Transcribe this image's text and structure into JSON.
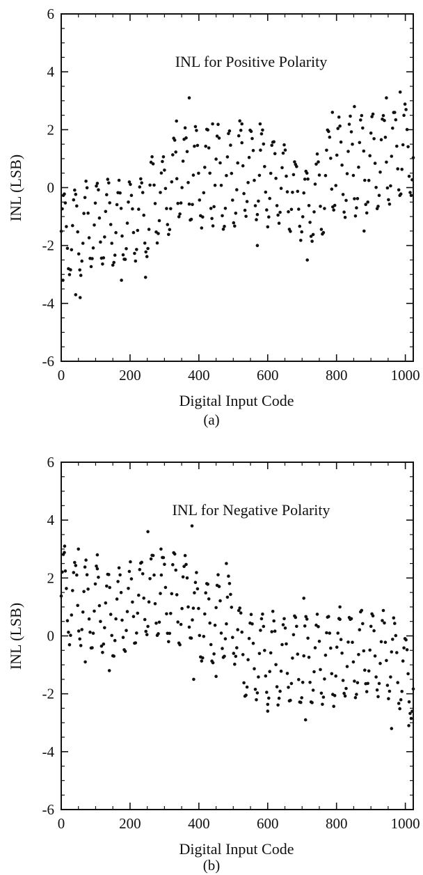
{
  "chart_data": [
    {
      "type": "scatter",
      "title": "INL for Positive Polarity",
      "xlabel": "Digital Input Code",
      "ylabel": "INL (LSB)",
      "caption": "(a)",
      "xlim": [
        0,
        1023
      ],
      "ylim": [
        -6,
        6
      ],
      "xticks": [
        "0",
        "200",
        "400",
        "600",
        "800",
        "1000"
      ],
      "yticks": [
        "-6",
        "-4",
        "-2",
        "0",
        "2",
        "4",
        "6"
      ],
      "grid": false,
      "marker_color": "#111111",
      "series": [
        {
          "trend_points": [
            [
              0,
              -1.6
            ],
            [
              60,
              -1.5
            ],
            [
              100,
              -1.2
            ],
            [
              150,
              -1.3
            ],
            [
              200,
              -1.2
            ],
            [
              255,
              -1.0
            ],
            [
              260,
              -0.4
            ],
            [
              320,
              -0.2
            ],
            [
              330,
              0.4
            ],
            [
              380,
              0.5
            ],
            [
              400,
              0.3
            ],
            [
              450,
              0.4
            ],
            [
              500,
              0.2
            ],
            [
              520,
              0.6
            ],
            [
              580,
              0.5
            ],
            [
              600,
              0.3
            ],
            [
              640,
              0.2
            ],
            [
              690,
              -0.4
            ],
            [
              720,
              -0.6
            ],
            [
              760,
              -0.2
            ],
            [
              770,
              0.4
            ],
            [
              800,
              0.8
            ],
            [
              850,
              0.7
            ],
            [
              900,
              0.8
            ],
            [
              960,
              1.1
            ],
            [
              1023,
              1.4
            ]
          ],
          "amplitude_points": [
            [
              0,
              1.6
            ],
            [
              250,
              1.4
            ],
            [
              260,
              1.6
            ],
            [
              320,
              1.5
            ],
            [
              380,
              1.8
            ],
            [
              500,
              1.7
            ],
            [
              600,
              1.6
            ],
            [
              700,
              1.3
            ],
            [
              780,
              1.7
            ],
            [
              900,
              1.8
            ],
            [
              1023,
              1.6
            ]
          ],
          "peaks": [
            [
              372,
              3.1
            ],
            [
              985,
              3.3
            ],
            [
              945,
              3.1
            ],
            [
              852,
              2.8
            ],
            [
              335,
              2.3
            ],
            [
              440,
              2.2
            ],
            [
              525,
              2.2
            ],
            [
              578,
              2.2
            ],
            [
              788,
              2.6
            ]
          ],
          "troughs": [
            [
              55,
              -3.8
            ],
            [
              42,
              -3.7
            ],
            [
              5,
              -3.2
            ],
            [
              175,
              -3.2
            ],
            [
              245,
              -3.1
            ],
            [
              570,
              -2.0
            ],
            [
              715,
              -2.5
            ],
            [
              880,
              -1.5
            ]
          ]
        }
      ]
    },
    {
      "type": "scatter",
      "title": "INL for Negative Polarity",
      "xlabel": "Digital Input Code",
      "ylabel": "INL (LSB)",
      "caption": "(b)",
      "xlim": [
        0,
        1023
      ],
      "ylim": [
        -6,
        6
      ],
      "xticks": [
        "0",
        "200",
        "400",
        "600",
        "800",
        "1000"
      ],
      "yticks": [
        "-6",
        "-4",
        "-2",
        "0",
        "2",
        "4",
        "6"
      ],
      "grid": false,
      "marker_color": "#111111",
      "series": [
        {
          "trend_points": [
            [
              0,
              1.3
            ],
            [
              60,
              1.1
            ],
            [
              120,
              0.9
            ],
            [
              160,
              0.7
            ],
            [
              200,
              1.0
            ],
            [
              260,
              1.5
            ],
            [
              320,
              1.3
            ],
            [
              380,
              1.3
            ],
            [
              390,
              0.6
            ],
            [
              440,
              0.5
            ],
            [
              500,
              0.6
            ],
            [
              510,
              0.3
            ],
            [
              520,
              -0.6
            ],
            [
              600,
              -0.8
            ],
            [
              700,
              -0.9
            ],
            [
              800,
              -0.8
            ],
            [
              900,
              -0.6
            ],
            [
              960,
              -0.7
            ],
            [
              1000,
              -1.4
            ],
            [
              1023,
              -1.5
            ]
          ],
          "amplitude_points": [
            [
              0,
              1.6
            ],
            [
              200,
              1.5
            ],
            [
              380,
              1.6
            ],
            [
              400,
              1.5
            ],
            [
              500,
              1.5
            ],
            [
              520,
              1.6
            ],
            [
              700,
              1.6
            ],
            [
              900,
              1.5
            ],
            [
              1023,
              1.5
            ]
          ],
          "peaks": [
            [
              252,
              3.6
            ],
            [
              380,
              3.8
            ],
            [
              10,
              3.1
            ],
            [
              50,
              3.0
            ],
            [
              105,
              2.8
            ],
            [
              290,
              3.0
            ],
            [
              480,
              2.5
            ],
            [
              705,
              1.3
            ],
            [
              810,
              1.0
            ]
          ],
          "troughs": [
            [
              385,
              -1.5
            ],
            [
              140,
              -1.2
            ],
            [
              70,
              -0.9
            ],
            [
              450,
              -1.4
            ],
            [
              600,
              -2.6
            ],
            [
              710,
              -2.9
            ],
            [
              960,
              -3.2
            ],
            [
              1010,
              -3.1
            ]
          ]
        }
      ]
    }
  ]
}
